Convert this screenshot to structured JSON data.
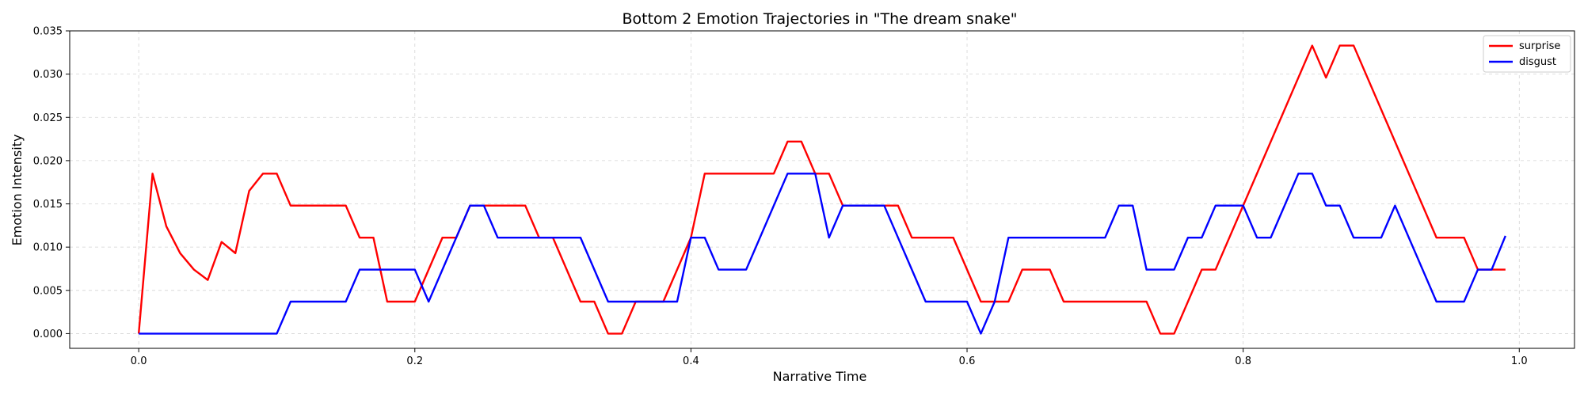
{
  "chart_data": {
    "type": "line",
    "title": "Bottom 2 Emotion Trajectories in \"The dream snake\"",
    "xlabel": "Narrative Time",
    "ylabel": "Emotion Intensity",
    "xlim": [
      -0.05,
      1.04
    ],
    "ylim": [
      -0.0017,
      0.035
    ],
    "xticks": [
      0.0,
      0.2,
      0.4,
      0.6,
      0.8,
      1.0
    ],
    "xtick_labels": [
      "0.0",
      "0.2",
      "0.4",
      "0.6",
      "0.8",
      "1.0"
    ],
    "yticks": [
      0.0,
      0.005,
      0.01,
      0.015,
      0.02,
      0.025,
      0.03,
      0.035
    ],
    "ytick_labels": [
      "0.000",
      "0.005",
      "0.010",
      "0.015",
      "0.020",
      "0.025",
      "0.030",
      "0.035"
    ],
    "grid": true,
    "legend_position": "top-right",
    "series": [
      {
        "name": "surprise",
        "color": "#ff0000",
        "points": [
          [
            0.0,
            0.0
          ],
          [
            0.01,
            0.0185
          ],
          [
            0.02,
            0.0124
          ],
          [
            0.03,
            0.0093
          ],
          [
            0.04,
            0.0074
          ],
          [
            0.05,
            0.0062
          ],
          [
            0.06,
            0.0106
          ],
          [
            0.07,
            0.0093
          ],
          [
            0.08,
            0.0165
          ],
          [
            0.09,
            0.0185
          ],
          [
            0.1,
            0.0185
          ],
          [
            0.11,
            0.0148
          ],
          [
            0.15,
            0.0148
          ],
          [
            0.16,
            0.0111
          ],
          [
            0.17,
            0.0111
          ],
          [
            0.18,
            0.0037
          ],
          [
            0.2,
            0.0037
          ],
          [
            0.22,
            0.0111
          ],
          [
            0.23,
            0.0111
          ],
          [
            0.24,
            0.0148
          ],
          [
            0.28,
            0.0148
          ],
          [
            0.29,
            0.0111
          ],
          [
            0.3,
            0.0111
          ],
          [
            0.32,
            0.0037
          ],
          [
            0.33,
            0.0037
          ],
          [
            0.34,
            0.0
          ],
          [
            0.35,
            0.0
          ],
          [
            0.36,
            0.0037
          ],
          [
            0.38,
            0.0037
          ],
          [
            0.4,
            0.0111
          ],
          [
            0.41,
            0.0185
          ],
          [
            0.46,
            0.0185
          ],
          [
            0.47,
            0.0222
          ],
          [
            0.48,
            0.0222
          ],
          [
            0.49,
            0.0185
          ],
          [
            0.5,
            0.0185
          ],
          [
            0.51,
            0.0148
          ],
          [
            0.55,
            0.0148
          ],
          [
            0.56,
            0.0111
          ],
          [
            0.59,
            0.0111
          ],
          [
            0.61,
            0.0037
          ],
          [
            0.63,
            0.0037
          ],
          [
            0.64,
            0.0074
          ],
          [
            0.66,
            0.0074
          ],
          [
            0.67,
            0.0037
          ],
          [
            0.73,
            0.0037
          ],
          [
            0.74,
            0.0
          ],
          [
            0.75,
            0.0
          ],
          [
            0.77,
            0.0074
          ],
          [
            0.78,
            0.0074
          ],
          [
            0.85,
            0.0333
          ],
          [
            0.86,
            0.0296
          ],
          [
            0.87,
            0.0333
          ],
          [
            0.88,
            0.0333
          ],
          [
            0.94,
            0.0111
          ],
          [
            0.96,
            0.0111
          ],
          [
            0.97,
            0.0074
          ],
          [
            0.99,
            0.0074
          ]
        ]
      },
      {
        "name": "disgust",
        "color": "#0000ff",
        "points": [
          [
            0.0,
            0.0
          ],
          [
            0.1,
            0.0
          ],
          [
            0.11,
            0.0037
          ],
          [
            0.15,
            0.0037
          ],
          [
            0.16,
            0.0074
          ],
          [
            0.2,
            0.0074
          ],
          [
            0.21,
            0.0037
          ],
          [
            0.24,
            0.0148
          ],
          [
            0.25,
            0.0148
          ],
          [
            0.26,
            0.0111
          ],
          [
            0.32,
            0.0111
          ],
          [
            0.34,
            0.0037
          ],
          [
            0.39,
            0.0037
          ],
          [
            0.4,
            0.0111
          ],
          [
            0.41,
            0.0111
          ],
          [
            0.42,
            0.0074
          ],
          [
            0.44,
            0.0074
          ],
          [
            0.47,
            0.0185
          ],
          [
            0.49,
            0.0185
          ],
          [
            0.5,
            0.0111
          ],
          [
            0.51,
            0.0148
          ],
          [
            0.54,
            0.0148
          ],
          [
            0.57,
            0.0037
          ],
          [
            0.6,
            0.0037
          ],
          [
            0.61,
            0.0
          ],
          [
            0.62,
            0.0037
          ],
          [
            0.63,
            0.0111
          ],
          [
            0.7,
            0.0111
          ],
          [
            0.71,
            0.0148
          ],
          [
            0.72,
            0.0148
          ],
          [
            0.73,
            0.0074
          ],
          [
            0.75,
            0.0074
          ],
          [
            0.76,
            0.0111
          ],
          [
            0.77,
            0.0111
          ],
          [
            0.78,
            0.0148
          ],
          [
            0.8,
            0.0148
          ],
          [
            0.81,
            0.0111
          ],
          [
            0.82,
            0.0111
          ],
          [
            0.84,
            0.0185
          ],
          [
            0.85,
            0.0185
          ],
          [
            0.86,
            0.0148
          ],
          [
            0.87,
            0.0148
          ],
          [
            0.88,
            0.0111
          ],
          [
            0.9,
            0.0111
          ],
          [
            0.91,
            0.0148
          ],
          [
            0.94,
            0.0037
          ],
          [
            0.96,
            0.0037
          ],
          [
            0.97,
            0.0074
          ],
          [
            0.98,
            0.0074
          ],
          [
            0.99,
            0.0113
          ]
        ]
      }
    ]
  }
}
